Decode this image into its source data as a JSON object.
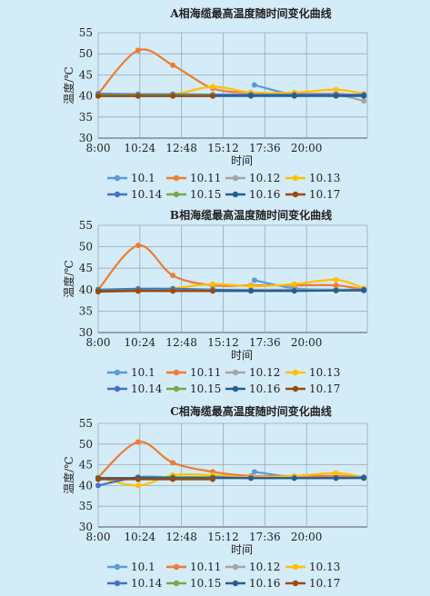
{
  "chart_data": [
    {
      "type": "line",
      "title": "A相海缆最高温度随时间变化曲线",
      "xlabel": "时间",
      "ylabel": "温度/℃",
      "ylim": [
        30,
        55
      ],
      "yticks": [
        30,
        35,
        40,
        45,
        50,
        55
      ],
      "xlim": [
        8,
        23.5
      ],
      "xticks": [
        8,
        10.4,
        12.8,
        15.2,
        17.6,
        20
      ],
      "xtick_labels": [
        "8:00",
        "10:24",
        "12:48",
        "15:12",
        "17:36",
        "20:00"
      ],
      "grid": true,
      "legend_position": "bottom",
      "series": [
        {
          "name": "10.1",
          "color": "#5b9bd5",
          "x": [
            17,
            19.3,
            21.7,
            23.3
          ],
          "y": [
            42.6,
            40.3,
            40.3,
            40.0
          ]
        },
        {
          "name": "10.11",
          "color": "#ed7d31",
          "x": [
            8,
            10.3,
            12.3,
            14.6,
            16.8,
            19.3,
            21.7,
            23.3
          ],
          "y": [
            40.5,
            50.8,
            47.3,
            41.8,
            40.8,
            40.5,
            40.5,
            40.0
          ]
        },
        {
          "name": "10.12",
          "color": "#a5a5a5",
          "x": [
            8,
            10.3,
            12.3,
            14.6,
            16.8,
            19.3,
            21.7,
            23.3
          ],
          "y": [
            40.3,
            40.3,
            40.3,
            40.3,
            40.3,
            40.3,
            40.3,
            38.8
          ]
        },
        {
          "name": "10.13",
          "color": "#ffc000",
          "x": [
            8,
            10.3,
            12.3,
            14.6,
            16.8,
            19.3,
            21.7,
            23.3
          ],
          "y": [
            40.5,
            40.3,
            40.3,
            42.2,
            40.8,
            40.8,
            41.5,
            40.5
          ]
        },
        {
          "name": "10.14",
          "color": "#4472c4",
          "x": [
            8,
            10.3,
            12.3,
            14.6,
            16.8,
            19.3,
            21.7,
            23.3
          ],
          "y": [
            40.5,
            40.4,
            40.4,
            40.3,
            40.3,
            40.3,
            40.3,
            40.3
          ]
        },
        {
          "name": "10.15",
          "color": "#70ad47",
          "x": [
            8,
            10.3,
            12.3,
            14.6
          ],
          "y": [
            40.2,
            40.2,
            40.2,
            40.2
          ]
        },
        {
          "name": "10.16",
          "color": "#255e91",
          "x": [
            8,
            10.3,
            12.3,
            14.6,
            16.8,
            19.3,
            21.7,
            23.3
          ],
          "y": [
            40.0,
            40.0,
            40.0,
            40.0,
            40.0,
            40.0,
            40.0,
            40.0
          ]
        },
        {
          "name": "10.17",
          "color": "#9e480e",
          "x": [
            8,
            10.3,
            12.3,
            14.6
          ],
          "y": [
            40.0,
            40.0,
            40.0,
            40.0
          ]
        }
      ]
    },
    {
      "type": "line",
      "title": "B相海缆最高温度随时间变化曲线",
      "xlabel": "时间",
      "ylabel": "温度/℃",
      "ylim": [
        30,
        55
      ],
      "yticks": [
        30,
        35,
        40,
        45,
        50,
        55
      ],
      "xlim": [
        8,
        23.5
      ],
      "xticks": [
        8,
        10.4,
        12.8,
        15.2,
        17.6,
        20
      ],
      "xtick_labels": [
        "8:00",
        "10:24",
        "12:48",
        "15:12",
        "17:36",
        "20:00"
      ],
      "grid": true,
      "legend_position": "bottom",
      "series": [
        {
          "name": "10.1",
          "color": "#5b9bd5",
          "x": [
            17,
            19.3,
            21.7,
            23.3
          ],
          "y": [
            42.2,
            40.3,
            40.0,
            40.0
          ]
        },
        {
          "name": "10.11",
          "color": "#ed7d31",
          "x": [
            8,
            10.3,
            12.3,
            14.6,
            16.8,
            19.3,
            21.7,
            23.3
          ],
          "y": [
            40.0,
            50.3,
            43.3,
            41.0,
            41.0,
            41.0,
            41.0,
            40.0
          ]
        },
        {
          "name": "10.12",
          "color": "#a5a5a5",
          "x": [
            8,
            10.3,
            12.3,
            14.6,
            16.8,
            19.3,
            21.7,
            23.3
          ],
          "y": [
            40.0,
            40.0,
            40.0,
            40.0,
            40.0,
            40.0,
            40.0,
            40.0
          ]
        },
        {
          "name": "10.13",
          "color": "#ffc000",
          "x": [
            8,
            10.3,
            12.3,
            14.6,
            16.8,
            19.3,
            21.7,
            23.3
          ],
          "y": [
            40.0,
            40.0,
            40.3,
            41.3,
            40.8,
            41.3,
            42.3,
            40.3
          ]
        },
        {
          "name": "10.14",
          "color": "#4472c4",
          "x": [
            8,
            10.3,
            12.3,
            14.6,
            16.8,
            19.3,
            21.7,
            23.3
          ],
          "y": [
            40.0,
            40.2,
            40.2,
            40.0,
            39.8,
            39.8,
            39.8,
            40.0
          ]
        },
        {
          "name": "10.15",
          "color": "#70ad47",
          "x": [
            8,
            10.3,
            12.3,
            14.6
          ],
          "y": [
            39.8,
            39.8,
            39.8,
            39.8
          ]
        },
        {
          "name": "10.16",
          "color": "#255e91",
          "x": [
            8,
            10.3,
            12.3,
            14.6,
            16.8,
            19.3,
            21.7,
            23.3
          ],
          "y": [
            39.7,
            39.7,
            39.7,
            39.7,
            39.7,
            39.7,
            39.8,
            39.8
          ]
        },
        {
          "name": "10.17",
          "color": "#9e480e",
          "x": [
            8,
            10.3,
            12.3,
            14.6
          ],
          "y": [
            39.5,
            39.7,
            39.7,
            39.7
          ]
        }
      ]
    },
    {
      "type": "line",
      "title": "C相海缆最高温度随时间变化曲线",
      "xlabel": "时间",
      "ylabel": "温度/℃",
      "ylim": [
        30,
        55
      ],
      "yticks": [
        30,
        35,
        40,
        45,
        50,
        55
      ],
      "xlim": [
        8,
        23.5
      ],
      "xticks": [
        8,
        10.4,
        12.8,
        15.2,
        17.6,
        20
      ],
      "xtick_labels": [
        "8:00",
        "10:24",
        "12:48",
        "15:12",
        "17:36",
        "20:00"
      ],
      "grid": true,
      "legend_position": "bottom",
      "series": [
        {
          "name": "10.1",
          "color": "#5b9bd5",
          "x": [
            17,
            19.3,
            21.7,
            23.3
          ],
          "y": [
            43.3,
            42.0,
            42.0,
            42.0
          ]
        },
        {
          "name": "10.11",
          "color": "#ed7d31",
          "x": [
            8,
            10.3,
            12.3,
            14.6,
            16.8,
            19.3,
            21.7,
            23.3
          ],
          "y": [
            42.0,
            50.5,
            45.5,
            43.3,
            42.3,
            42.3,
            42.3,
            42.0
          ]
        },
        {
          "name": "10.12",
          "color": "#a5a5a5",
          "x": [
            8,
            10.3,
            12.3,
            14.6,
            16.8,
            19.3,
            21.7,
            23.3
          ],
          "y": [
            41.8,
            41.8,
            41.8,
            41.8,
            41.8,
            41.8,
            41.8,
            41.8
          ]
        },
        {
          "name": "10.13",
          "color": "#ffc000",
          "x": [
            8,
            10.3,
            12.3,
            14.6,
            16.8,
            19.3,
            21.7,
            23.3
          ],
          "y": [
            42.0,
            40.0,
            42.5,
            42.5,
            42.0,
            42.3,
            43.0,
            42.0
          ]
        },
        {
          "name": "10.14",
          "color": "#4472c4",
          "x": [
            8,
            10.3,
            12.3,
            14.6,
            16.8,
            19.3,
            21.7,
            23.3
          ],
          "y": [
            40.0,
            42.0,
            42.0,
            42.0,
            41.8,
            41.8,
            41.8,
            42.0
          ]
        },
        {
          "name": "10.15",
          "color": "#70ad47",
          "x": [
            8,
            10.3,
            12.3,
            14.6
          ],
          "y": [
            41.8,
            41.8,
            42.0,
            42.0
          ]
        },
        {
          "name": "10.16",
          "color": "#255e91",
          "x": [
            8,
            10.3,
            12.3,
            14.6,
            16.8,
            19.3,
            21.7,
            23.3
          ],
          "y": [
            41.8,
            41.8,
            41.8,
            41.8,
            41.8,
            41.8,
            41.8,
            41.8
          ]
        },
        {
          "name": "10.17",
          "color": "#9e480e",
          "x": [
            8,
            10.3,
            12.3,
            14.6
          ],
          "y": [
            41.5,
            41.5,
            41.5,
            41.5
          ]
        }
      ]
    }
  ]
}
